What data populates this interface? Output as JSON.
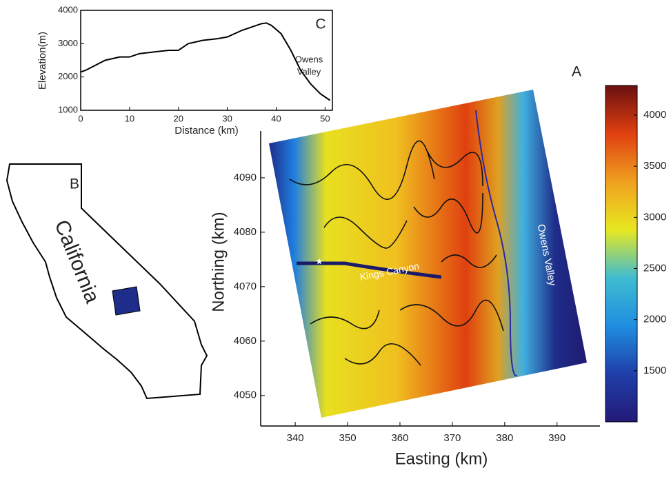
{
  "chart_data": [
    {
      "type": "line",
      "panel_label": "C",
      "xlabel": "Distance (km)",
      "ylabel": "Elevation(m)",
      "x": [
        0,
        1,
        3,
        5,
        8,
        10,
        12,
        15,
        18,
        20,
        22,
        25,
        28,
        30,
        33,
        35,
        37,
        38,
        39,
        41,
        43,
        45,
        47,
        49,
        51
      ],
      "series": [
        {
          "color": "#000000",
          "values": [
            2150,
            2200,
            2350,
            2500,
            2600,
            2600,
            2700,
            2750,
            2800,
            2800,
            3000,
            3100,
            3150,
            3200,
            3400,
            3500,
            3600,
            3620,
            3550,
            3300,
            2800,
            2200,
            1800,
            1500,
            1300
          ]
        }
      ],
      "xlim": [
        0,
        51.5
      ],
      "ylim": [
        1000,
        4000
      ],
      "xticks": [
        0,
        10,
        20,
        30,
        40,
        50
      ],
      "yticks": [
        1000,
        2000,
        3000,
        4000
      ],
      "annotation_lines": [
        "Owens",
        "Valley"
      ]
    },
    {
      "type": "heatmap",
      "panel_label": "A",
      "xlabel": "Easting (km)",
      "ylabel": "Northing (km)",
      "xlim": [
        333.4,
        398.2
      ],
      "ylim": [
        4044.4,
        4098.6
      ],
      "xticks": [
        340,
        350,
        360,
        370,
        380,
        390
      ],
      "yticks": [
        4050,
        4060,
        4070,
        4080,
        4090
      ],
      "annotations": [
        "Kings Canyon",
        "Owens Valley"
      ],
      "colorbar": {
        "lim": [
          1000,
          4290
        ],
        "ticks": [
          1500,
          2000,
          2500,
          3000,
          3500,
          4000
        ],
        "colormap": [
          "#231a78",
          "#1f3fa8",
          "#1f8ee0",
          "#3fbcd0",
          "#e8e820",
          "#f0a020",
          "#e04010",
          "#6a1010"
        ]
      }
    }
  ],
  "inset": {
    "label": "B",
    "text": "California"
  }
}
